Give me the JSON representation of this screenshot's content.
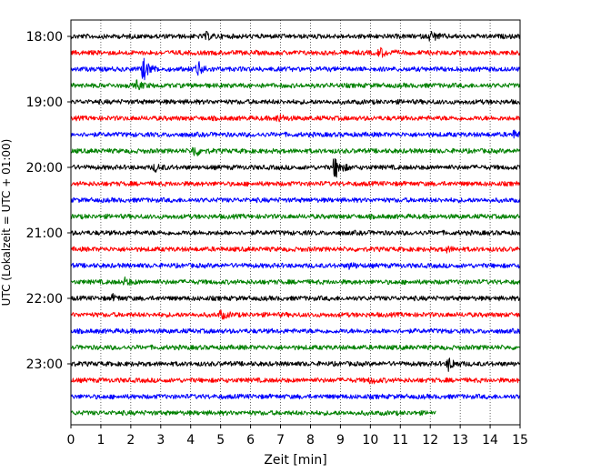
{
  "chart_data": {
    "type": "line",
    "title": "",
    "xlabel": "Zeit  [min]",
    "ylabel": "UTC (Lokalzeit = UTC + 01:00)",
    "xlim": [
      0,
      15
    ],
    "x_ticks": [
      0,
      1,
      2,
      3,
      4,
      5,
      6,
      7,
      8,
      9,
      10,
      11,
      12,
      13,
      14,
      15
    ],
    "x_tick_labels": [
      "0",
      "1",
      "2",
      "3",
      "4",
      "5",
      "6",
      "7",
      "8",
      "9",
      "10",
      "11",
      "12",
      "13",
      "14",
      "15"
    ],
    "y_tick_labels": [
      "18:00",
      "19:00",
      "20:00",
      "21:00",
      "22:00",
      "23:00"
    ],
    "grid": {
      "vertical": true,
      "style": "dotted"
    },
    "trace_colors": [
      "#000000",
      "#ff0000",
      "#0000ff",
      "#008000"
    ],
    "trace_interval_minutes": 15,
    "traces": [
      {
        "start": "18:00",
        "color": "#000000",
        "events": [
          {
            "t": 4.5,
            "amp": 0.5
          },
          {
            "t": 12.0,
            "amp": 0.8
          }
        ]
      },
      {
        "start": "18:15",
        "color": "#ff0000",
        "events": [
          {
            "t": 10.3,
            "amp": 0.7
          }
        ]
      },
      {
        "start": "18:30",
        "color": "#0000ff",
        "events": [
          {
            "t": 2.4,
            "amp": 1.8
          },
          {
            "t": 4.2,
            "amp": 1.3
          }
        ]
      },
      {
        "start": "18:45",
        "color": "#008000",
        "events": [
          {
            "t": 2.2,
            "amp": 0.6
          }
        ]
      },
      {
        "start": "19:00",
        "color": "#000000",
        "events": []
      },
      {
        "start": "19:15",
        "color": "#ff0000",
        "events": [
          {
            "t": 6.9,
            "amp": 0.6
          }
        ]
      },
      {
        "start": "19:30",
        "color": "#0000ff",
        "events": [
          {
            "t": 14.8,
            "amp": 0.5
          }
        ]
      },
      {
        "start": "19:45",
        "color": "#008000",
        "events": [
          {
            "t": 4.1,
            "amp": 0.9
          }
        ]
      },
      {
        "start": "20:00",
        "color": "#000000",
        "events": [
          {
            "t": 2.8,
            "amp": 0.5
          },
          {
            "t": 8.8,
            "amp": 1.8
          }
        ]
      },
      {
        "start": "20:15",
        "color": "#ff0000",
        "events": []
      },
      {
        "start": "20:30",
        "color": "#0000ff",
        "events": []
      },
      {
        "start": "20:45",
        "color": "#008000",
        "events": []
      },
      {
        "start": "21:00",
        "color": "#000000",
        "events": []
      },
      {
        "start": "21:15",
        "color": "#ff0000",
        "events": [
          {
            "t": 12.5,
            "amp": 0.4
          }
        ]
      },
      {
        "start": "21:30",
        "color": "#0000ff",
        "events": [
          {
            "t": 9.3,
            "amp": 0.4
          }
        ]
      },
      {
        "start": "21:45",
        "color": "#008000",
        "events": [
          {
            "t": 1.8,
            "amp": 0.5
          }
        ]
      },
      {
        "start": "22:00",
        "color": "#000000",
        "events": [
          {
            "t": 1.4,
            "amp": 0.4
          }
        ]
      },
      {
        "start": "22:15",
        "color": "#ff0000",
        "events": [
          {
            "t": 5.0,
            "amp": 0.6
          }
        ]
      },
      {
        "start": "22:30",
        "color": "#0000ff",
        "events": []
      },
      {
        "start": "22:45",
        "color": "#008000",
        "events": []
      },
      {
        "start": "23:00",
        "color": "#000000",
        "events": [
          {
            "t": 12.6,
            "amp": 1.0
          }
        ]
      },
      {
        "start": "23:15",
        "color": "#ff0000",
        "events": [
          {
            "t": 10.0,
            "amp": 0.4
          }
        ]
      },
      {
        "start": "23:30",
        "color": "#0000ff",
        "events": []
      },
      {
        "start": "23:45",
        "color": "#008000",
        "events": [],
        "end_minute": 12.2
      }
    ]
  }
}
